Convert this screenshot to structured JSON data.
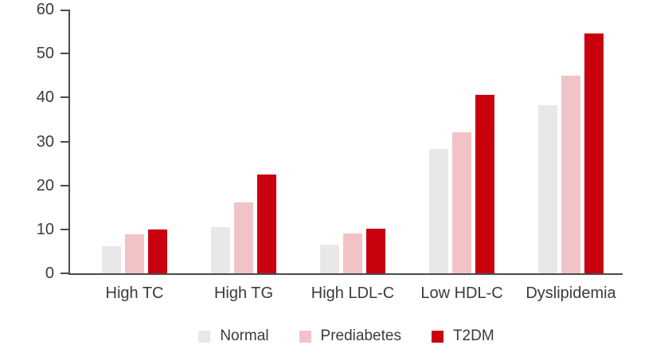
{
  "chart_data": {
    "type": "bar",
    "title": "",
    "xlabel": "",
    "ylabel": "",
    "categories": [
      "High TC",
      "High TG",
      "High LDL-C",
      "Low HDL-C",
      "Dyslipidemia"
    ],
    "series": [
      {
        "name": "Normal",
        "color": "#E9E7E7",
        "values": [
          6.1,
          10.5,
          6.5,
          28.2,
          38.2
        ]
      },
      {
        "name": "Prediabetes",
        "color": "#F2C3C6",
        "values": [
          8.9,
          16.1,
          9.1,
          32.0,
          44.9
        ]
      },
      {
        "name": "T2DM",
        "color": "#C9000E",
        "values": [
          10.0,
          22.4,
          10.2,
          40.6,
          54.6
        ]
      }
    ],
    "ylim": [
      0,
      60
    ],
    "yticks": [
      0,
      10,
      20,
      30,
      40,
      50,
      60
    ],
    "grid": false,
    "legend_position": "bottom-center",
    "axis_color": "#4a4a4a",
    "text_color": "#3b3b3b",
    "background_color": "#ffffff"
  }
}
